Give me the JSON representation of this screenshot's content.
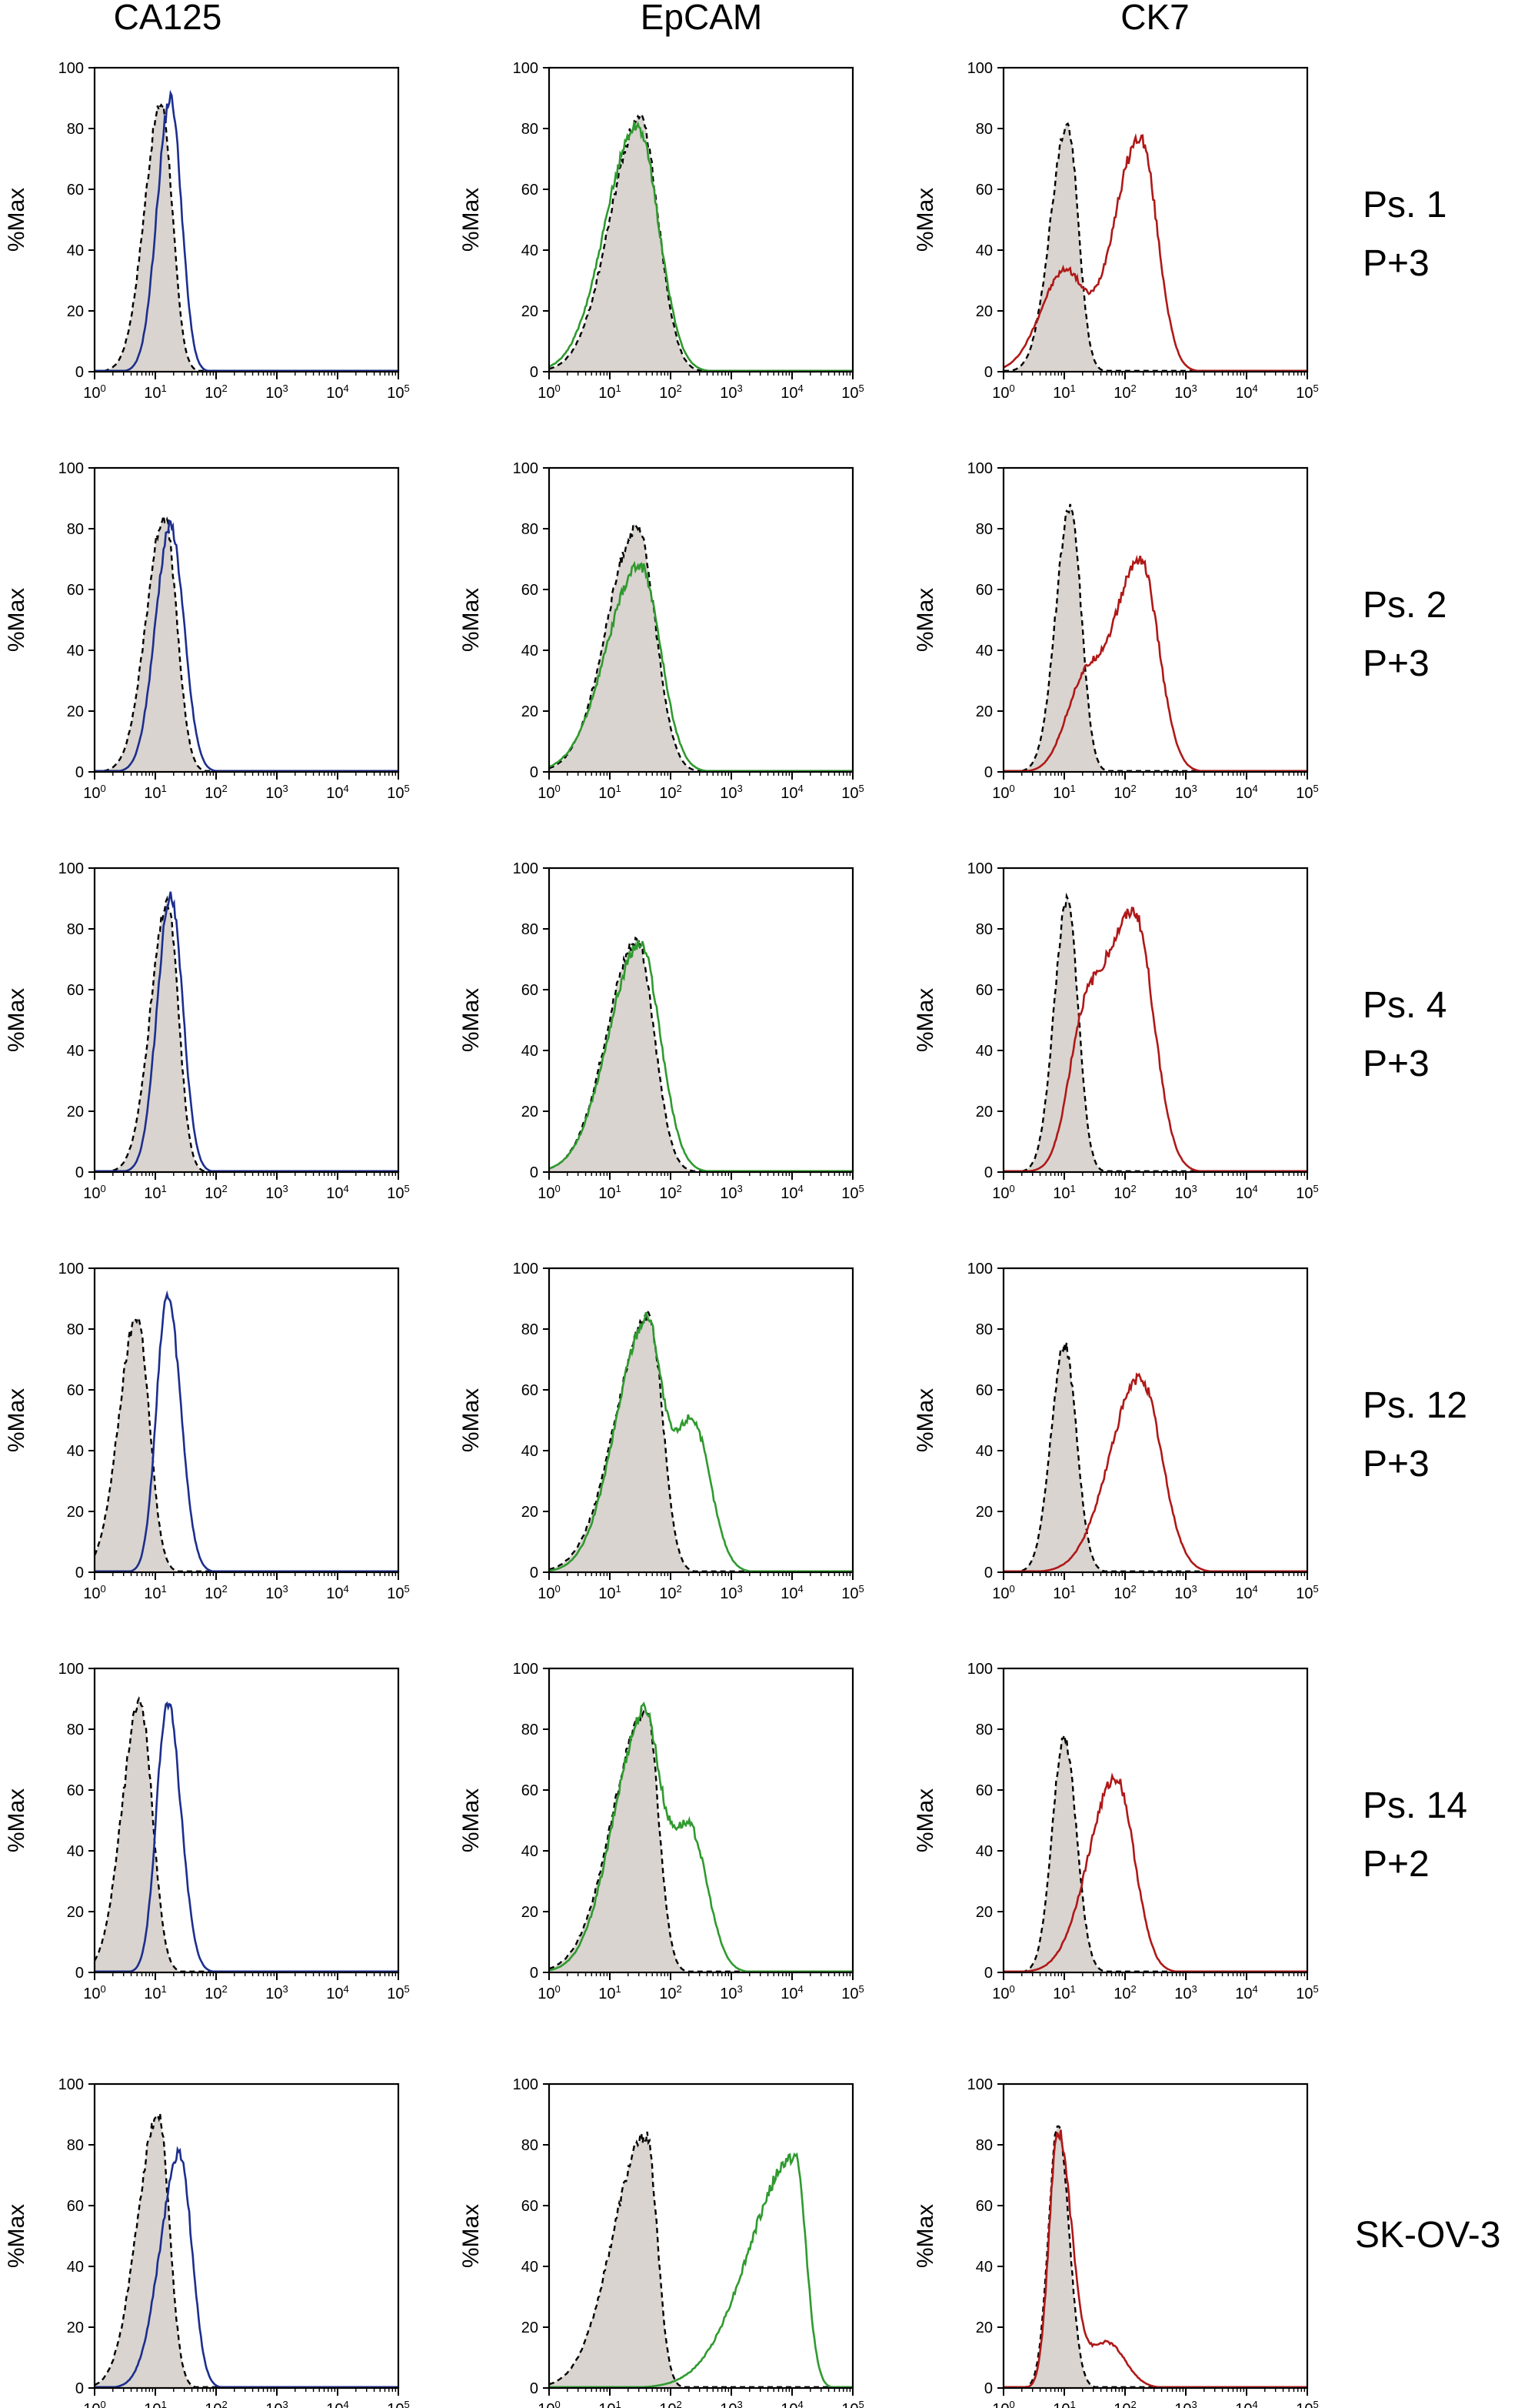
{
  "column_titles": [
    "CA125",
    "EpCAM",
    "CK7"
  ],
  "row_labels": [
    [
      "Ps. 1",
      "P+3"
    ],
    [
      "Ps. 2",
      "P+3"
    ],
    [
      "Ps. 4",
      "P+3"
    ],
    [
      "Ps. 12",
      "P+3"
    ],
    [
      "Ps. 14",
      "P+2"
    ],
    [
      "SK-OV-3"
    ]
  ],
  "colors": {
    "control_fill": "#d9d4cf",
    "control_line": "#000000",
    "CA125": "#1c2e8e",
    "EpCAM": "#2f9a2f",
    "CK7": "#b01818"
  },
  "chart_data": {
    "type": "histogram-overlay grid",
    "ylabel": "%Max",
    "ylim": [
      0,
      100
    ],
    "yticks": [
      0,
      20,
      40,
      60,
      80,
      100
    ],
    "xscale": "log",
    "xlim_log10": [
      0,
      5
    ],
    "xtick_labels": [
      "10^0",
      "10^1",
      "10^2",
      "10^3",
      "10^4",
      "10^5"
    ],
    "columns": [
      "CA125",
      "EpCAM",
      "CK7"
    ],
    "rows": [
      "Ps. 1 P+3",
      "Ps. 2 P+3",
      "Ps. 4 P+3",
      "Ps. 12 P+3",
      "Ps. 14 P+2",
      "SK-OV-3"
    ],
    "series_note": "Each panel: isotype control (grey filled, dashed black) and marker (colored line). Peaks given as [log10 position, height %Max, sigma left, sigma right].",
    "panels": [
      [
        {
          "control": [
            1.1,
            88,
            0.28,
            0.18
          ],
          "marker": [
            [
              1.25,
              90,
              0.22,
              0.18
            ]
          ]
        },
        {
          "control": [
            1.5,
            83,
            0.5,
            0.3
          ],
          "marker": [
            [
              1.45,
              81,
              0.52,
              0.35
            ]
          ]
        },
        {
          "control": [
            1.05,
            81,
            0.28,
            0.18
          ],
          "marker": [
            [
              1.0,
              32,
              0.4,
              0.3
            ],
            [
              2.25,
              77,
              0.45,
              0.28
            ]
          ]
        }
      ],
      [
        {
          "control": [
            1.15,
            84,
            0.3,
            0.2
          ],
          "marker": [
            [
              1.25,
              81,
              0.25,
              0.22
            ]
          ]
        },
        {
          "control": [
            1.45,
            80,
            0.5,
            0.3
          ],
          "marker": [
            [
              1.5,
              68,
              0.55,
              0.33
            ]
          ]
        },
        {
          "control": [
            1.1,
            87,
            0.24,
            0.18
          ],
          "marker": [
            [
              1.3,
              25,
              0.3,
              0.3
            ],
            [
              2.25,
              70,
              0.45,
              0.3
            ]
          ]
        }
      ],
      [
        {
          "control": [
            1.2,
            88,
            0.28,
            0.18
          ],
          "marker": [
            [
              1.25,
              91,
              0.22,
              0.2
            ]
          ]
        },
        {
          "control": [
            1.45,
            76,
            0.5,
            0.28
          ],
          "marker": [
            [
              1.5,
              75,
              0.52,
              0.33
            ]
          ]
        },
        {
          "control": [
            1.05,
            89,
            0.22,
            0.18
          ],
          "marker": [
            [
              1.3,
              35,
              0.25,
              0.3
            ],
            [
              2.15,
              85,
              0.5,
              0.32
            ]
          ]
        }
      ],
      [
        {
          "control": [
            0.7,
            84,
            0.3,
            0.2
          ],
          "marker": [
            [
              1.2,
              91,
              0.18,
              0.22
            ]
          ]
        },
        {
          "control": [
            1.65,
            84,
            0.55,
            0.22
          ],
          "marker": [
            [
              1.6,
              82,
              0.5,
              0.25
            ],
            [
              2.35,
              50,
              0.3,
              0.3
            ]
          ]
        },
        {
          "control": [
            1.0,
            75,
            0.22,
            0.2
          ],
          "marker": [
            [
              2.25,
              64,
              0.5,
              0.35
            ]
          ]
        }
      ],
      [
        {
          "control": [
            0.75,
            89,
            0.3,
            0.2
          ],
          "marker": [
            [
              1.2,
              89,
              0.18,
              0.22
            ]
          ]
        },
        {
          "control": [
            1.6,
            86,
            0.55,
            0.2
          ],
          "marker": [
            [
              1.55,
              82,
              0.5,
              0.25
            ],
            [
              2.3,
              48,
              0.35,
              0.3
            ]
          ]
        },
        {
          "control": [
            1.0,
            77,
            0.2,
            0.2
          ],
          "marker": [
            [
              1.85,
              64,
              0.45,
              0.3
            ]
          ]
        }
      ],
      [
        {
          "control": [
            1.05,
            90,
            0.35,
            0.18
          ],
          "marker": [
            [
              1.4,
              77,
              0.32,
              0.2
            ]
          ]
        },
        {
          "control": [
            1.6,
            83,
            0.55,
            0.18
          ],
          "marker": [
            [
              4.05,
              76,
              0.75,
              0.18
            ]
          ]
        },
        {
          "control": [
            0.9,
            86,
            0.16,
            0.18
          ],
          "marker": [
            [
              0.9,
              84,
              0.15,
              0.22
            ],
            [
              1.7,
              15,
              0.3,
              0.3
            ]
          ]
        }
      ]
    ]
  }
}
